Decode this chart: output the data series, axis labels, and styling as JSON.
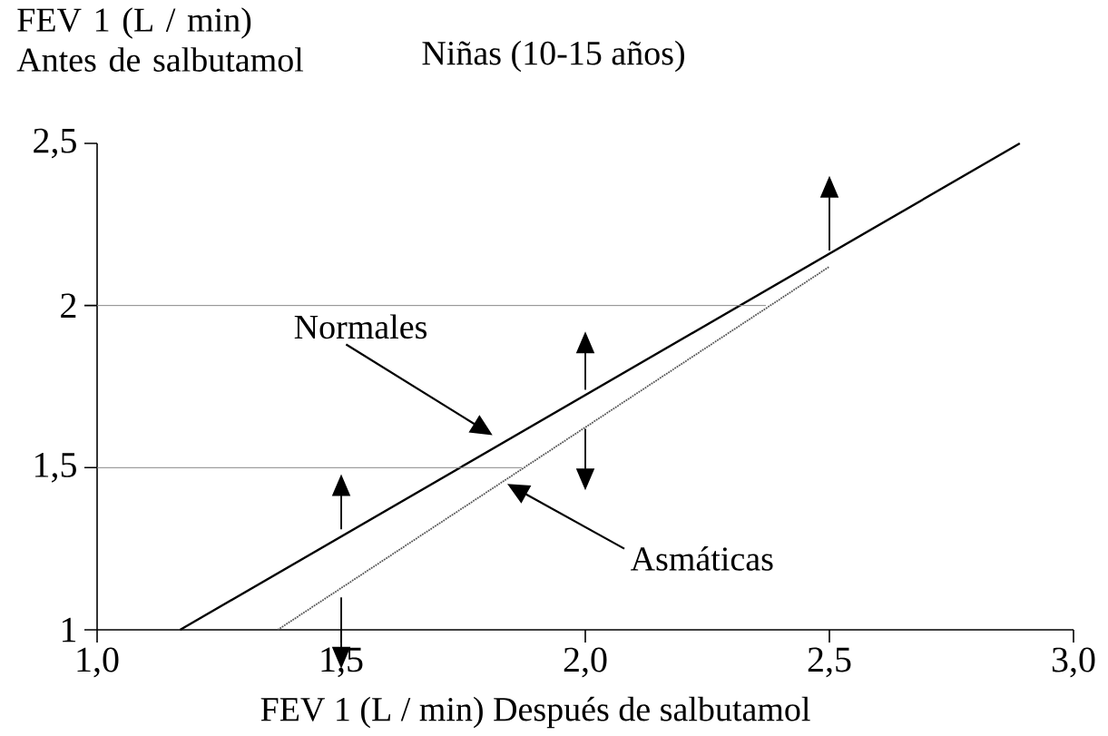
{
  "chart_data": {
    "type": "line",
    "title": "Niñas (10-15 años)",
    "xlabel": "FEV 1 (L / min) Después de salbutamol",
    "ylabel": "FEV 1 (L / min) Antes de salbutamol",
    "xlim": [
      1.0,
      3.0
    ],
    "ylim": [
      1.0,
      2.5
    ],
    "xticks": [
      {
        "value": 1.0,
        "label": "1,0"
      },
      {
        "value": 1.5,
        "label": "1,5"
      },
      {
        "value": 2.0,
        "label": "2,0"
      },
      {
        "value": 2.5,
        "label": "2,5"
      },
      {
        "value": 3.0,
        "label": "3,0"
      }
    ],
    "yticks": [
      1,
      {
        "value": 1.5,
        "label": "1,5"
      },
      2,
      {
        "value": 2.5,
        "label": "2,5"
      }
    ],
    "series": [
      {
        "color": "#000000",
        "x": [
          1.17,
          2.89
        ],
        "values": [
          1.0,
          2.5
        ],
        "line_style": "solid"
      },
      {
        "color": "#555555",
        "x": [
          1.37,
          2.5
        ],
        "values": [
          1.0,
          2.12
        ],
        "line_style": "dotted"
      },
      {
        "color": "#888888",
        "x": [
          1.0,
          2.37
        ],
        "values": [
          2.0,
          2.0
        ],
        "line_style": "solid"
      },
      {
        "color": "#888888",
        "x": [
          1.0,
          1.87
        ],
        "values": [
          1.5,
          1.5
        ],
        "line_style": "solid"
      }
    ],
    "annotations": [
      "Normales",
      "Asmáticas"
    ],
    "grid": false
  }
}
